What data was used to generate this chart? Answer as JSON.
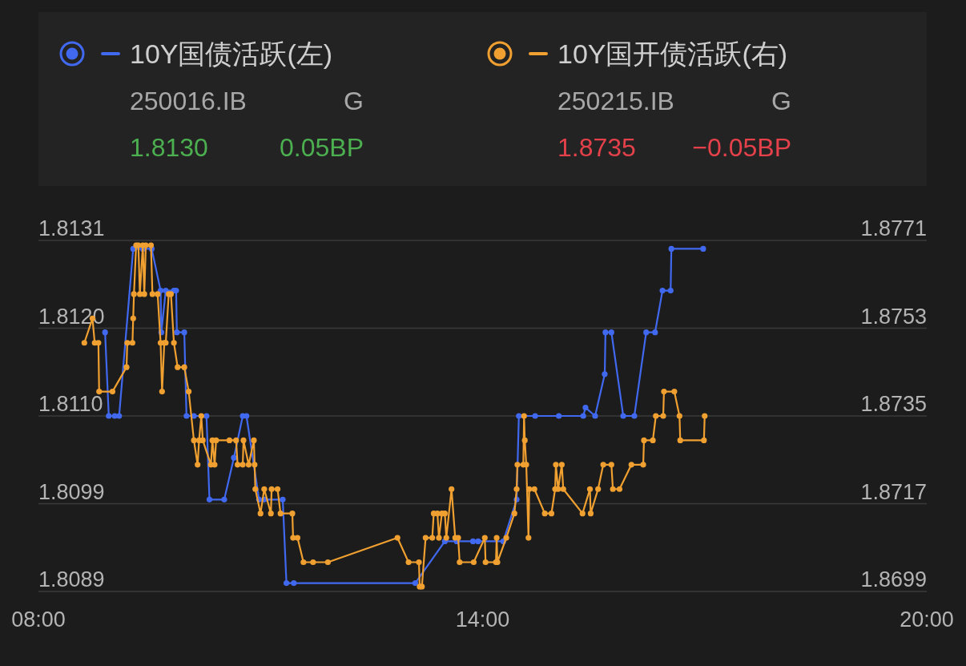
{
  "chart_data": {
    "type": "line",
    "xlim": [
      8,
      20
    ],
    "xticks": [
      {
        "value": 8,
        "label": "08:00"
      },
      {
        "value": 14,
        "label": "14:00"
      },
      {
        "value": 20,
        "label": "20:00"
      }
    ],
    "ylim": [
      1.8089,
      1.8131
    ],
    "yticks": [
      {
        "value": 1.8089,
        "label": "1.8089"
      },
      {
        "value": 1.80995,
        "label": "1.8099"
      },
      {
        "value": 1.811,
        "label": "1.8110"
      },
      {
        "value": 1.81205,
        "label": "1.8120"
      },
      {
        "value": 1.8131,
        "label": "1.8131"
      }
    ],
    "y2lim": [
      1.8699,
      1.8771
    ],
    "y2ticks": [
      1.8699,
      1.8717,
      1.8735,
      1.8753,
      1.8771
    ],
    "grid": "y",
    "legend": "top",
    "marker": "circle",
    "line_style": "solid",
    "annotations": [
      "250016.IB",
      "G",
      "1.8130",
      "0.05BP",
      "250215.IB",
      "G",
      "1.8735",
      "−0.05BP"
    ],
    "series": [
      {
        "name": "10Y国债活跃(左)",
        "color": "#4169f0",
        "axis": "y",
        "x": [
          8.9,
          8.95,
          9.03,
          9.09,
          9.28,
          9.41,
          9.53,
          9.65,
          9.66,
          9.72,
          9.83,
          9.86,
          9.87,
          9.97,
          10.0,
          10.1,
          10.27,
          10.31,
          10.51,
          10.64,
          10.76,
          10.81,
          10.98,
          11.05,
          11.3,
          11.35,
          11.45,
          13.09,
          13.49,
          13.65,
          13.87,
          13.94,
          14.28,
          14.46,
          14.49,
          14.71,
          15.03,
          15.36,
          15.39,
          15.52,
          15.65,
          15.66,
          15.74,
          15.9,
          16.05,
          16.21,
          16.33,
          16.43,
          16.54,
          16.55,
          16.98
        ],
        "values": [
          1.812,
          1.811,
          1.811,
          1.811,
          1.813,
          1.813,
          1.813,
          1.8125,
          1.812,
          1.8125,
          1.8125,
          1.8125,
          1.812,
          1.812,
          1.811,
          1.811,
          1.811,
          1.81,
          1.81,
          1.8105,
          1.811,
          1.811,
          1.81,
          1.81,
          1.81,
          1.809,
          1.809,
          1.809,
          1.8095,
          1.8095,
          1.8095,
          1.8095,
          1.8095,
          1.81,
          1.811,
          1.811,
          1.811,
          1.811,
          1.8111,
          1.811,
          1.8115,
          1.812,
          1.812,
          1.811,
          1.811,
          1.812,
          1.812,
          1.8125,
          1.8125,
          1.813,
          1.813
        ]
      },
      {
        "name": "10Y国开债活跃(右)",
        "color": "#f0a030",
        "axis": "y2",
        "x": [
          8.62,
          8.73,
          8.76,
          8.81,
          8.82,
          9.0,
          9.19,
          9.2,
          9.27,
          9.28,
          9.29,
          9.32,
          9.35,
          9.37,
          9.41,
          9.43,
          9.45,
          9.52,
          9.54,
          9.61,
          9.65,
          9.67,
          9.7,
          9.72,
          9.76,
          9.79,
          9.83,
          9.88,
          9.97,
          10.03,
          10.1,
          10.15,
          10.17,
          10.2,
          10.22,
          10.33,
          10.35,
          10.38,
          10.4,
          10.58,
          10.67,
          10.69,
          10.76,
          10.77,
          10.84,
          10.91,
          10.92,
          10.93,
          11.0,
          11.05,
          11.14,
          11.15,
          11.23,
          11.27,
          11.43,
          11.44,
          11.5,
          11.58,
          11.71,
          11.91,
          12.85,
          13.0,
          13.14,
          13.15,
          13.18,
          13.23,
          13.32,
          13.34,
          13.39,
          13.41,
          13.45,
          13.49,
          13.51,
          13.58,
          13.63,
          13.67,
          13.69,
          13.88,
          14.03,
          14.04,
          14.18,
          14.19,
          14.2,
          14.32,
          14.43,
          14.46,
          14.47,
          14.55,
          14.56,
          14.57,
          14.59,
          14.62,
          14.63,
          14.7,
          14.84,
          14.93,
          14.98,
          14.99,
          15.02,
          15.07,
          15.09,
          15.35,
          15.45,
          15.46,
          15.56,
          15.63,
          15.74,
          15.76,
          15.85,
          16.01,
          16.17,
          16.18,
          16.3,
          16.34,
          16.44,
          16.45,
          16.59,
          16.66,
          16.67,
          16.99,
          17.0
        ],
        "values": [
          1.875,
          1.8755,
          1.875,
          1.875,
          1.874,
          1.874,
          1.8745,
          1.875,
          1.875,
          1.8755,
          1.876,
          1.877,
          1.877,
          1.876,
          1.877,
          1.876,
          1.877,
          1.877,
          1.876,
          1.876,
          1.875,
          1.874,
          1.875,
          1.875,
          1.876,
          1.876,
          1.875,
          1.8745,
          1.8745,
          1.874,
          1.873,
          1.8725,
          1.873,
          1.8735,
          1.873,
          1.8725,
          1.873,
          1.8725,
          1.873,
          1.873,
          1.873,
          1.8725,
          1.8725,
          1.873,
          1.8725,
          1.873,
          1.8725,
          1.872,
          1.8715,
          1.872,
          1.8715,
          1.872,
          1.872,
          1.8715,
          1.8715,
          1.871,
          1.871,
          1.8705,
          1.8705,
          1.8705,
          1.871,
          1.8705,
          1.8705,
          1.87,
          1.87,
          1.871,
          1.871,
          1.8715,
          1.8715,
          1.871,
          1.8715,
          1.8715,
          1.871,
          1.872,
          1.871,
          1.871,
          1.8705,
          1.8705,
          1.871,
          1.8705,
          1.8705,
          1.871,
          1.8705,
          1.871,
          1.8715,
          1.872,
          1.8725,
          1.8725,
          1.8735,
          1.873,
          1.8725,
          1.871,
          1.872,
          1.872,
          1.8715,
          1.8715,
          1.872,
          1.8725,
          1.872,
          1.8725,
          1.872,
          1.8715,
          1.872,
          1.8715,
          1.872,
          1.8725,
          1.8725,
          1.872,
          1.872,
          1.8725,
          1.8725,
          1.873,
          1.873,
          1.8735,
          1.8735,
          1.874,
          1.874,
          1.8735,
          1.873,
          1.873,
          1.8735
        ]
      }
    ]
  }
}
